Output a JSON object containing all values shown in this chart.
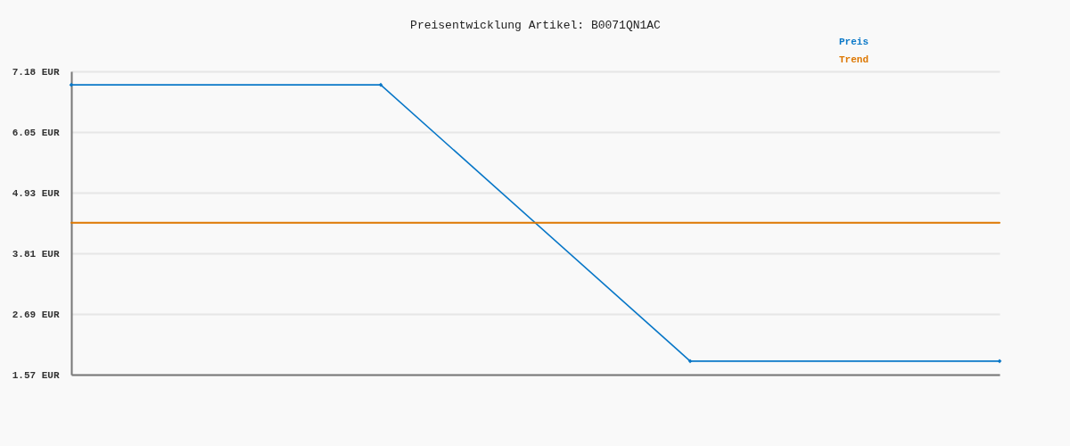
{
  "chart_data": {
    "type": "line",
    "title": "Preisentwicklung Artikel: B0071QN1AC",
    "categories": [
      null,
      null,
      null,
      null
    ],
    "series": [
      {
        "name": "Preis",
        "color": "#0a78c8",
        "values": [
          6.93,
          6.93,
          1.82,
          1.82
        ],
        "marker": "diamond"
      },
      {
        "name": "Trend",
        "color": "#dd7700",
        "values": [
          4.38,
          4.38,
          4.38,
          4.38
        ],
        "marker": "none"
      }
    ],
    "ylim": [
      1.57,
      7.18
    ],
    "yticks": [
      {
        "value": 1.57,
        "label": "1.57 EUR"
      },
      {
        "value": 2.69,
        "label": "2.69 EUR"
      },
      {
        "value": 3.81,
        "label": "3.81 EUR"
      },
      {
        "value": 4.93,
        "label": "4.93 EUR"
      },
      {
        "value": 6.05,
        "label": "6.05 EUR"
      },
      {
        "value": 7.18,
        "label": "7.18 EUR"
      }
    ],
    "grid": "y",
    "legend": "top right",
    "tick_labels": "y",
    "line_style": "solid"
  }
}
